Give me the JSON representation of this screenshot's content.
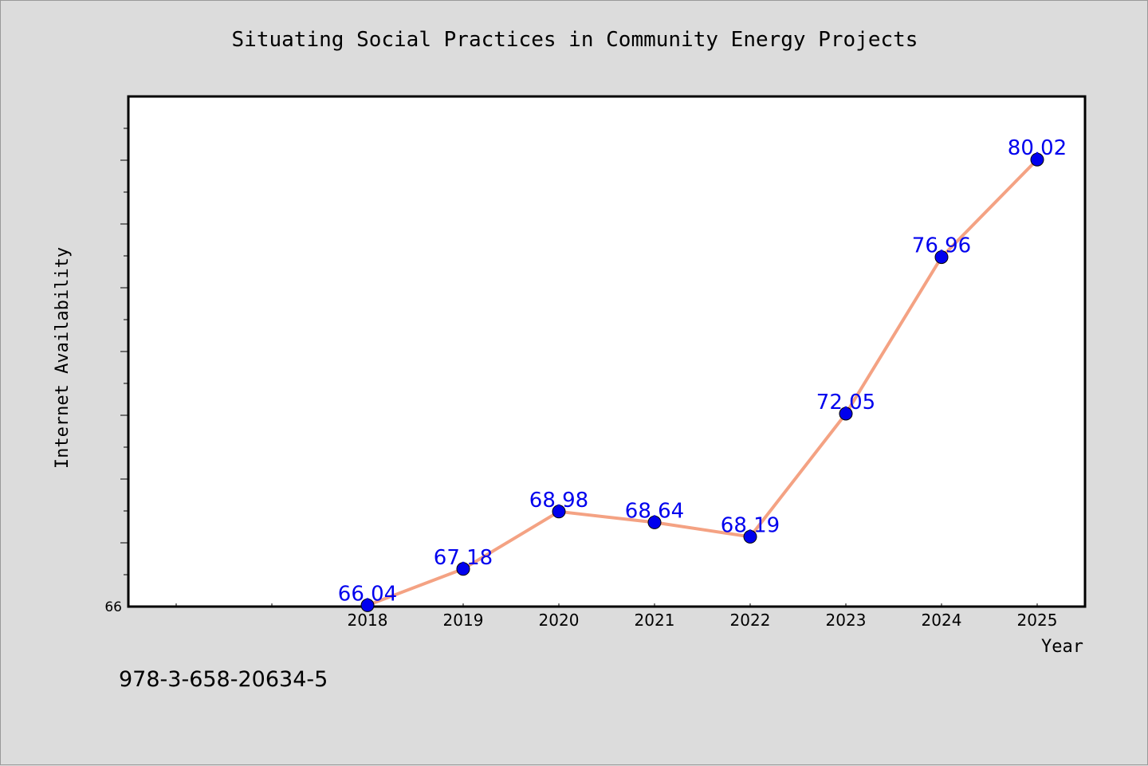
{
  "chart_data": {
    "type": "line",
    "title": "Situating Social Practices in Community Energy Projects",
    "xlabel": "Year",
    "ylabel": "Internet Availability",
    "x": [
      "2018",
      "2019",
      "2020",
      "2021",
      "2022",
      "2023",
      "2024",
      "2025"
    ],
    "series": [
      {
        "values": [
          66.04,
          67.18,
          68.98,
          68.64,
          68.19,
          72.05,
          76.96,
          80.02
        ]
      }
    ],
    "data_labels": [
      "66.04",
      "67.18",
      "68.98",
      "68.64",
      "68.19",
      "72.05",
      "76.96",
      "80.02"
    ],
    "y_tick_labels": [
      "66"
    ],
    "ylim": [
      66,
      82
    ],
    "grid": false,
    "colors": {
      "line": "#f4a283",
      "marker": "#0000ee",
      "label": "#0000ee"
    }
  },
  "footer": {
    "isbn": "978-3-658-20634-5"
  }
}
